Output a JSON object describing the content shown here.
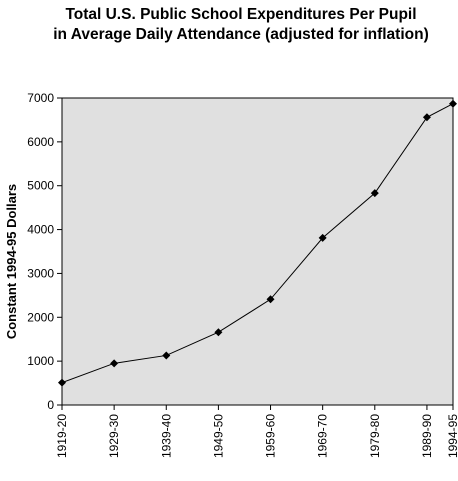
{
  "chart_data": {
    "type": "line",
    "title": [
      "Total U.S. Public School Expenditures Per Pupil",
      "in Average Daily Attendance (adjusted for inflation)"
    ],
    "xlabel": "",
    "ylabel": "Constant 1994-95 Dollars",
    "ylim": [
      0,
      7000
    ],
    "yticks": [
      0,
      1000,
      2000,
      3000,
      4000,
      5000,
      6000,
      7000
    ],
    "categories": [
      "1919-20",
      "1929-30",
      "1939-40",
      "1949-50",
      "1959-60",
      "1969-70",
      "1979-80",
      "1989-90",
      "1994-95"
    ],
    "x_positions": [
      1919.5,
      1929.5,
      1939.5,
      1949.5,
      1959.5,
      1969.5,
      1979.5,
      1989.5,
      1994.5
    ],
    "xlim": [
      1919.5,
      1994.5
    ],
    "values": [
      510,
      950,
      1130,
      1660,
      2410,
      3810,
      4830,
      6560,
      6870
    ],
    "grid": false,
    "legend": "none",
    "colors": {
      "plot_background": "#e0e0e0",
      "line": "#000000",
      "marker": "#000000"
    },
    "marker": "diamond"
  }
}
